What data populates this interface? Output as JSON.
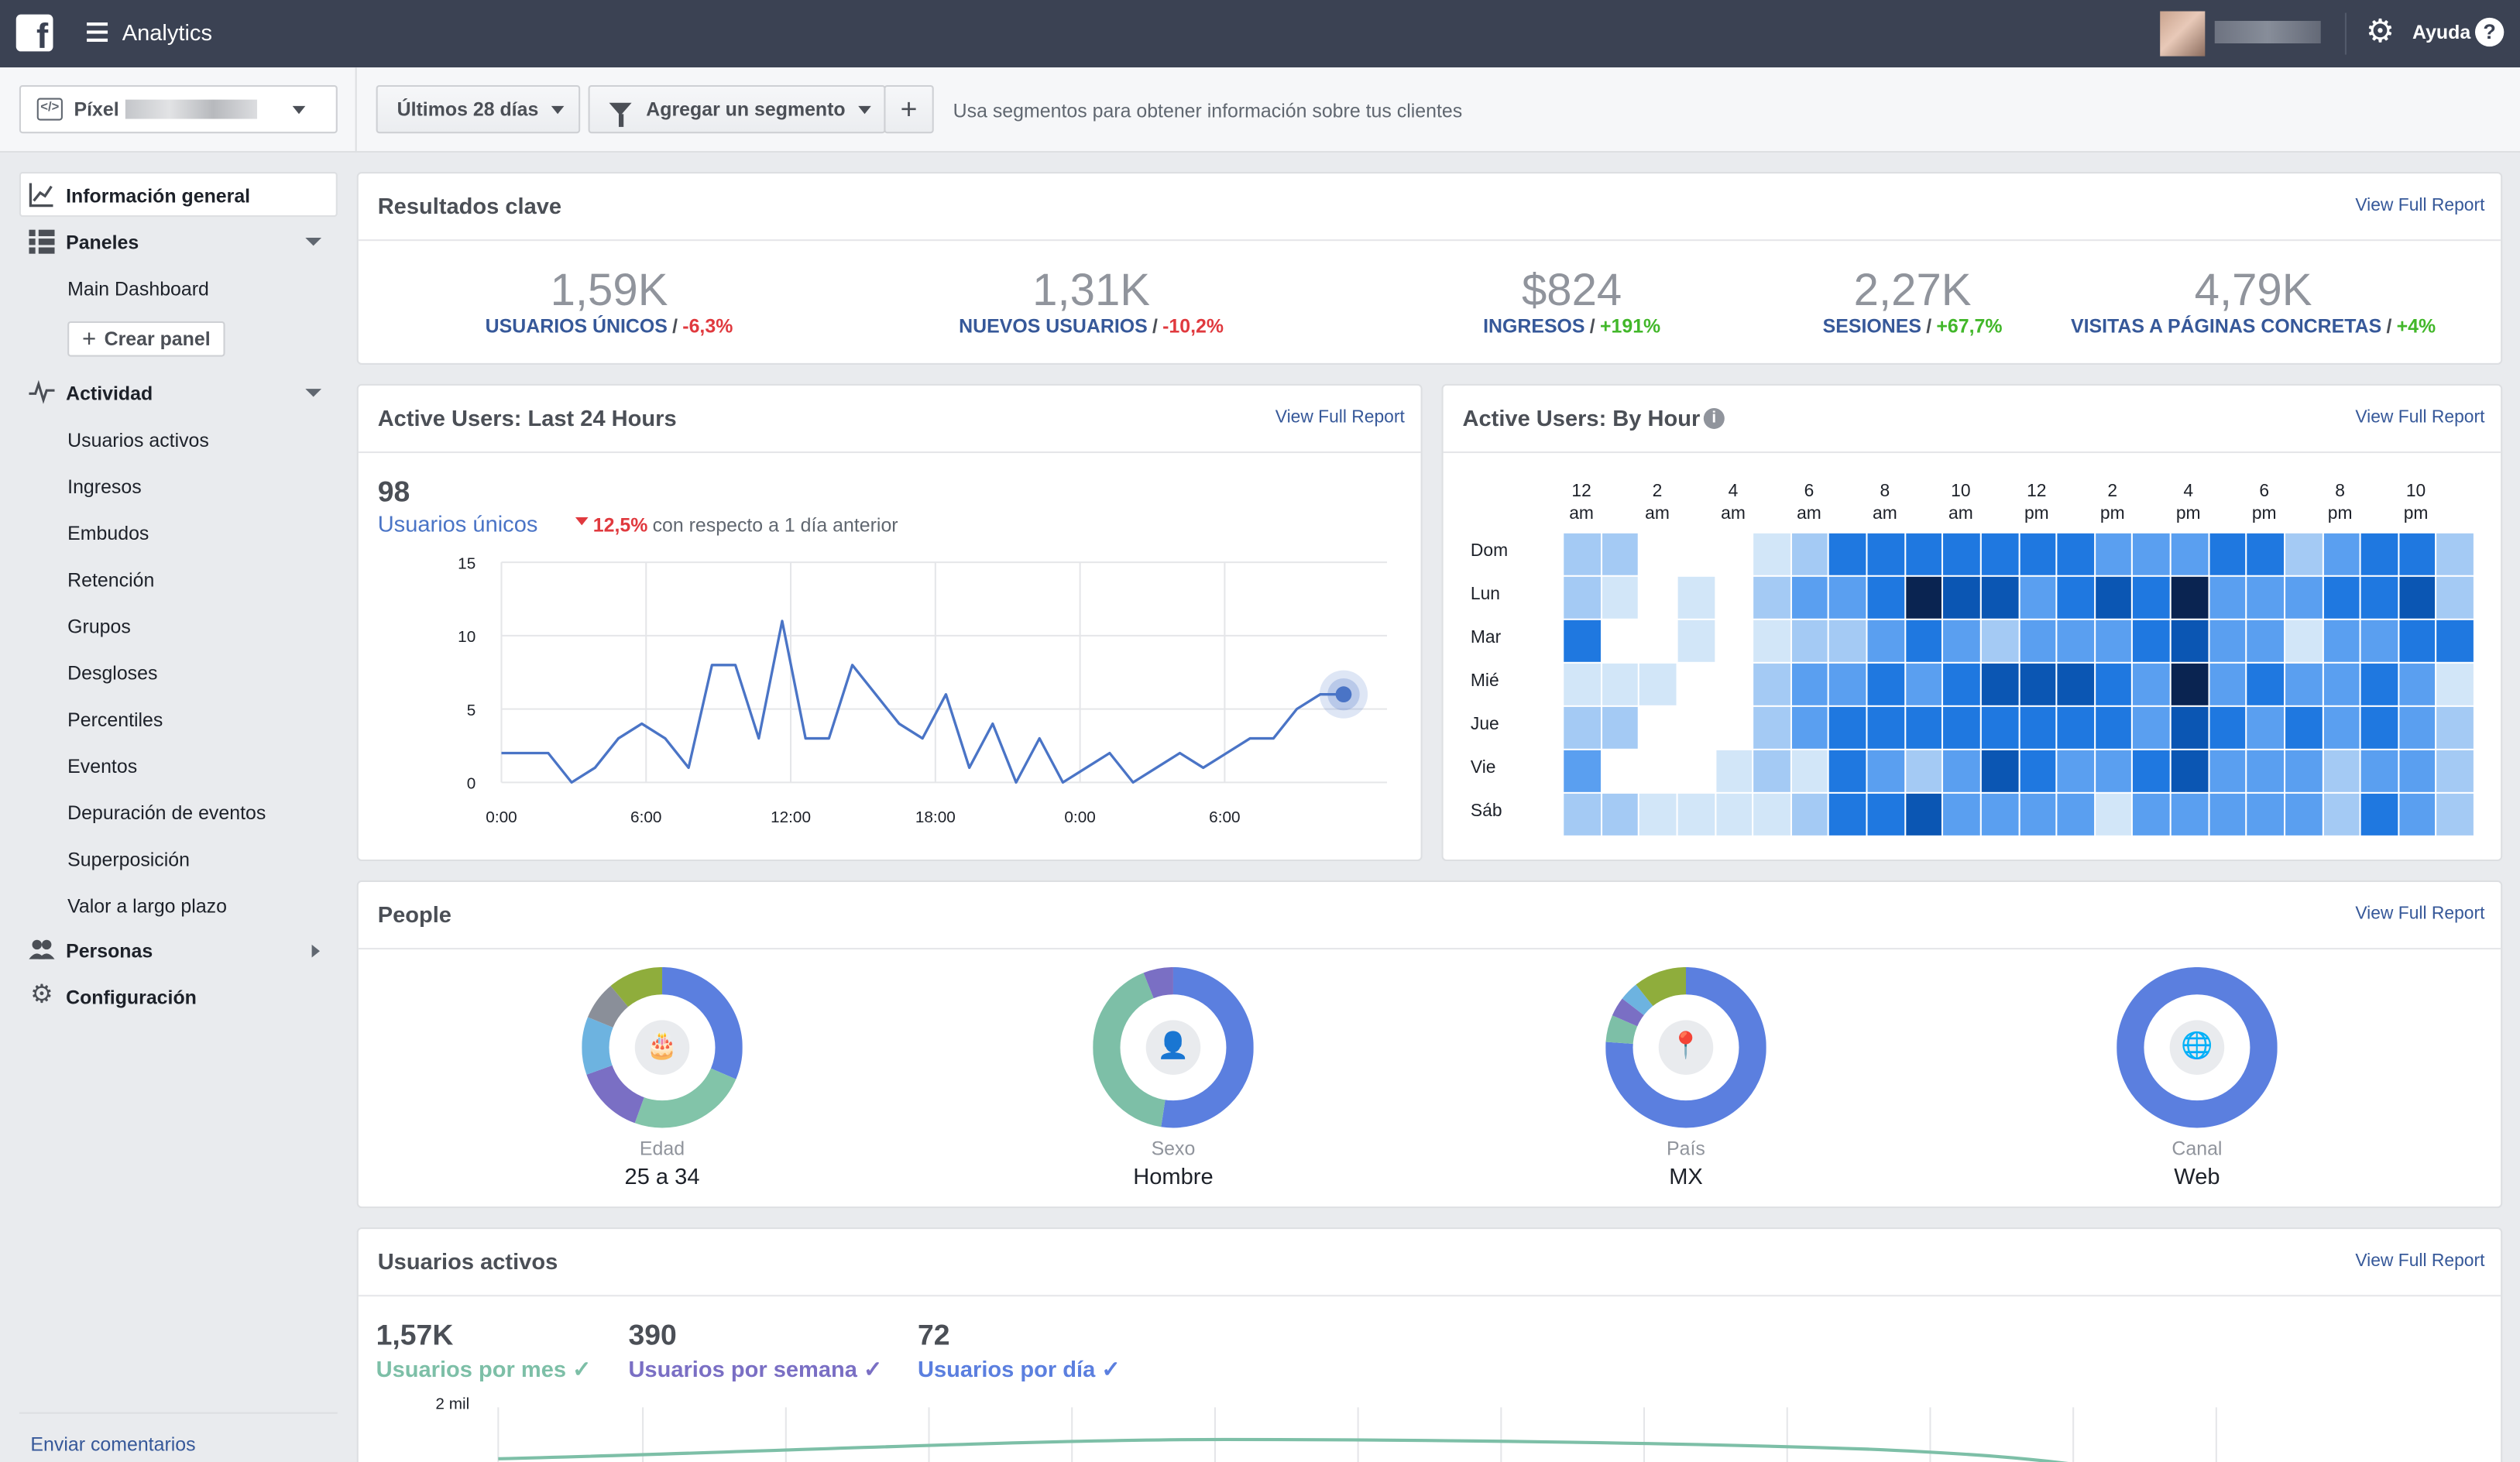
{
  "topbar": {
    "app_title": "Analytics",
    "help_label": "Ayuda",
    "help_icon": "?"
  },
  "toolbar": {
    "pixel_label": "Píxel",
    "date_range": "Últimos 28 días",
    "segment_label": "Agregar un segmento",
    "plus_label": "+",
    "hint": "Usa segmentos para obtener información sobre tus clientes"
  },
  "sidebar": {
    "overview": "Información general",
    "dashboards": "Paneles",
    "main_dashboard": "Main Dashboard",
    "create_panel": "Crear panel",
    "activity": "Actividad",
    "activity_items": [
      "Usuarios activos",
      "Ingresos",
      "Embudos",
      "Retención",
      "Grupos",
      "Desgloses",
      "Percentiles",
      "Eventos",
      "Depuración de eventos",
      "Superposición",
      "Valor a largo plazo"
    ],
    "people": "Personas",
    "settings": "Configuración",
    "feedback": "Enviar comentarios"
  },
  "key_results": {
    "title": "Resultados clave",
    "link": "View Full Report",
    "kpis": [
      {
        "value": "1,59K",
        "label": "USUARIOS ÚNICOS",
        "change": "-6,3%",
        "trend": "neg"
      },
      {
        "value": "1,31K",
        "label": "NUEVOS USUARIOS",
        "change": "-10,2%",
        "trend": "neg"
      },
      {
        "value": "$824",
        "label": "INGRESOS",
        "change": "+191%",
        "trend": "pos"
      },
      {
        "value": "2,27K",
        "label": "SESIONES",
        "change": "+67,7%",
        "trend": "pos"
      },
      {
        "value": "4,79K",
        "label": "VISITAS A PÁGINAS CONCRETAS",
        "change": "+4%",
        "trend": "pos"
      }
    ]
  },
  "active_24h": {
    "title": "Active Users: Last 24 Hours",
    "link": "View Full Report",
    "count": "98",
    "count_label": "Usuarios únicos",
    "change": "12,5%",
    "change_text": "con respecto a 1 día anterior"
  },
  "by_hour": {
    "title": "Active Users: By Hour",
    "info_icon": "i",
    "link": "View Full Report",
    "hours": [
      [
        "12",
        "am"
      ],
      [
        "2",
        "am"
      ],
      [
        "4",
        "am"
      ],
      [
        "6",
        "am"
      ],
      [
        "8",
        "am"
      ],
      [
        "10",
        "am"
      ],
      [
        "12",
        "pm"
      ],
      [
        "2",
        "pm"
      ],
      [
        "4",
        "pm"
      ],
      [
        "6",
        "pm"
      ],
      [
        "8",
        "pm"
      ],
      [
        "10",
        "pm"
      ]
    ],
    "days": [
      "Dom",
      "Lun",
      "Mar",
      "Mié",
      "Jue",
      "Vie",
      "Sáb"
    ],
    "levels": [
      [
        2,
        2,
        0,
        0,
        0,
        1,
        2,
        4,
        4,
        4,
        4,
        4,
        4,
        4,
        3,
        3,
        3,
        4,
        4,
        2,
        3,
        4,
        4,
        2
      ],
      [
        2,
        1,
        0,
        1,
        0,
        2,
        3,
        3,
        4,
        6,
        5,
        5,
        3,
        4,
        5,
        4,
        6,
        3,
        3,
        3,
        4,
        4,
        5,
        2
      ],
      [
        4,
        0,
        0,
        1,
        0,
        1,
        2,
        2,
        3,
        4,
        3,
        2,
        3,
        3,
        3,
        4,
        5,
        3,
        3,
        1,
        3,
        3,
        4,
        4
      ],
      [
        1,
        1,
        1,
        0,
        0,
        2,
        3,
        3,
        4,
        3,
        4,
        5,
        5,
        5,
        4,
        3,
        6,
        3,
        4,
        3,
        3,
        4,
        3,
        1
      ],
      [
        2,
        2,
        0,
        0,
        0,
        2,
        3,
        4,
        4,
        4,
        4,
        4,
        4,
        4,
        4,
        3,
        5,
        4,
        3,
        4,
        3,
        4,
        3,
        2
      ],
      [
        3,
        0,
        0,
        0,
        1,
        2,
        1,
        4,
        3,
        2,
        3,
        5,
        4,
        3,
        3,
        4,
        5,
        3,
        3,
        3,
        2,
        3,
        3,
        2
      ],
      [
        2,
        2,
        1,
        1,
        1,
        1,
        2,
        4,
        4,
        5,
        3,
        3,
        3,
        3,
        1,
        3,
        3,
        3,
        3,
        3,
        2,
        4,
        3,
        2
      ]
    ],
    "colors": [
      "#ffffff",
      "#d2e6f8",
      "#a4caf4",
      "#5a9ff0",
      "#1f78e0",
      "#0b56b3",
      "#0a2451"
    ]
  },
  "people": {
    "title": "People",
    "link": "View Full Report",
    "donuts": [
      {
        "label": "Edad",
        "value": "25 a 34",
        "icon": "cake-icon"
      },
      {
        "label": "Sexo",
        "value": "Hombre",
        "icon": "person-icon"
      },
      {
        "label": "País",
        "value": "MX",
        "icon": "location-pin-icon"
      },
      {
        "label": "Canal",
        "value": "Web",
        "icon": "globe-icon"
      }
    ]
  },
  "active_users": {
    "title": "Usuarios activos",
    "link": "View Full Report",
    "monthly": {
      "value": "1,57K",
      "label": "Usuarios por mes"
    },
    "weekly": {
      "value": "390",
      "label": "Usuarios por semana"
    },
    "daily": {
      "value": "72",
      "label": "Usuarios por día"
    },
    "y_top_label": "2 mil"
  },
  "chart_data": {
    "type": "line",
    "title": "",
    "xlabel": "",
    "ylabel": "",
    "ylim": [
      0,
      15
    ],
    "yticks": [
      "15",
      "10",
      "5",
      "0"
    ],
    "xticks": [
      "0:00",
      "6:00",
      "12:00",
      "18:00",
      "0:00",
      "6:00"
    ],
    "values": [
      2,
      2,
      2,
      0,
      1,
      3,
      4,
      3,
      1,
      8,
      8,
      3,
      11,
      3,
      3,
      8,
      6,
      4,
      3,
      6,
      1,
      4,
      0,
      3,
      0,
      1,
      2,
      0,
      1,
      2,
      1,
      2,
      3,
      3,
      5,
      6,
      6
    ],
    "series_color": "#4a74c6"
  }
}
